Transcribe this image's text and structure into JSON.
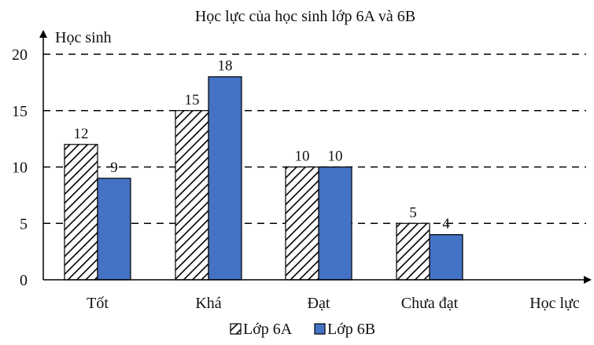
{
  "chart_data": {
    "type": "bar",
    "title": "Học lực của học sinh lớp 6A và 6B",
    "xlabel": "Học lực",
    "ylabel": "Học sinh",
    "categories": [
      "Tốt",
      "Khá",
      "Đạt",
      "Chưa đạt"
    ],
    "series": [
      {
        "name": "Lớp 6A",
        "values": [
          12,
          15,
          10,
          5
        ],
        "pattern": "diagonal-hatch",
        "color": "#000000"
      },
      {
        "name": "Lớp 6B",
        "values": [
          9,
          18,
          10,
          4
        ],
        "pattern": "solid",
        "color": "#4472C4"
      }
    ],
    "ylim": [
      0,
      20
    ],
    "yticks": [
      0,
      5,
      10,
      15,
      20
    ],
    "grid": "dashed horizontal",
    "legend": "bottom-center",
    "data_labels": true
  }
}
